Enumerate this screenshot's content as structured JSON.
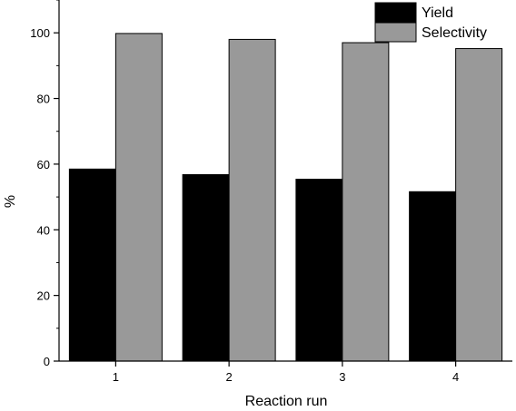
{
  "chart_data": {
    "type": "bar",
    "categories": [
      "1",
      "2",
      "3",
      "4"
    ],
    "series": [
      {
        "name": "Yield",
        "values": [
          58.5,
          56.8,
          55.4,
          51.6
        ],
        "color": "#000000"
      },
      {
        "name": "Selectivity",
        "values": [
          99.8,
          98.0,
          97.0,
          95.2
        ],
        "color": "#999999"
      }
    ],
    "xlabel": "Reaction run",
    "ylabel": "%",
    "ylim": [
      0,
      110
    ],
    "yticks": [
      "0",
      "20",
      "40",
      "60",
      "80",
      "100"
    ],
    "grid": false,
    "legend_position": "top-right"
  }
}
